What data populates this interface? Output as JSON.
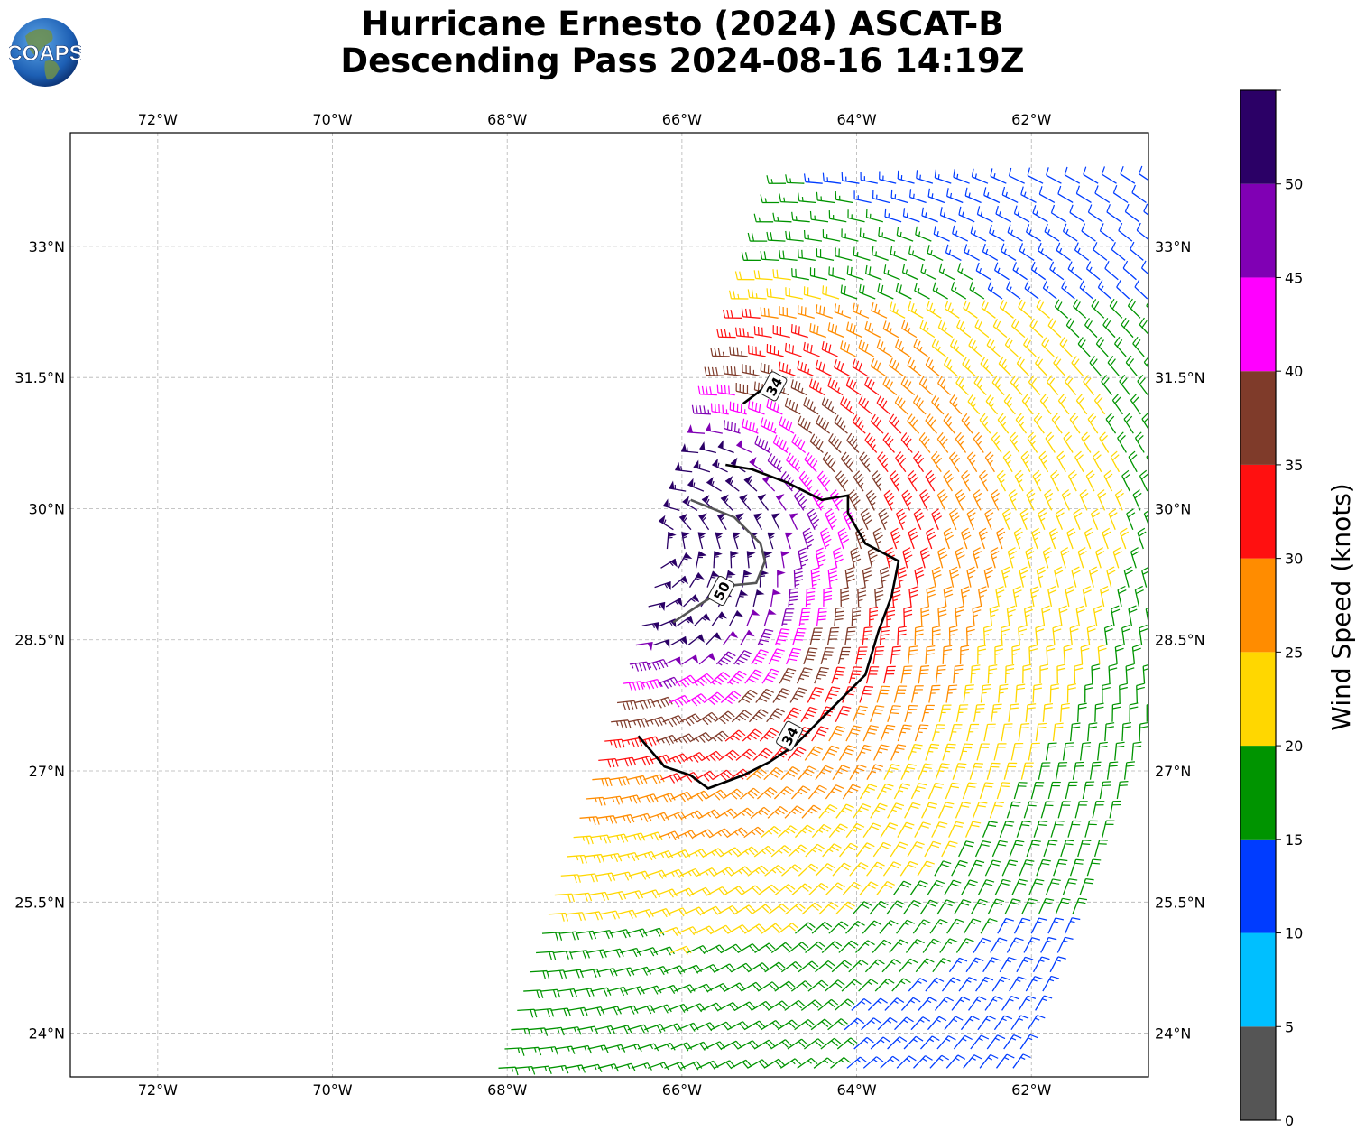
{
  "header": {
    "logo_text": "COAPS",
    "title_line1": "Hurricane Ernesto (2024) ASCAT-B",
    "title_line2": "Descending Pass 2024-08-16 14:19Z"
  },
  "chart_data": {
    "type": "wind-barb map",
    "title": "Hurricane Ernesto (2024) ASCAT-B Descending Pass 2024-08-16 14:19Z",
    "lon_range": [
      -73.0,
      -60.66
    ],
    "lat_range": [
      23.5,
      34.3
    ],
    "lon_ticks": [
      "72°W",
      "70°W",
      "68°W",
      "66°W",
      "64°W",
      "62°W"
    ],
    "lon_tick_values": [
      -72,
      -70,
      -68,
      -66,
      -64,
      -62
    ],
    "lat_ticks": [
      "33°N",
      "31.5°N",
      "30°N",
      "28.5°N",
      "27°N",
      "25.5°N",
      "24°N"
    ],
    "lat_tick_values": [
      33,
      31.5,
      30,
      28.5,
      27,
      25.5,
      24
    ],
    "grid": true,
    "storm_center": [
      -66.3,
      29.6
    ],
    "contours": [
      {
        "label": "34",
        "color": "#000000",
        "points": [
          [
            -66.5,
            27.4
          ],
          [
            -66.2,
            27.05
          ],
          [
            -65.9,
            26.95
          ],
          [
            -65.7,
            26.8
          ],
          [
            -65.3,
            26.95
          ],
          [
            -65.0,
            27.1
          ],
          [
            -64.7,
            27.3
          ],
          [
            -64.3,
            27.7
          ],
          [
            -63.9,
            28.1
          ],
          [
            -63.75,
            28.6
          ],
          [
            -63.6,
            29.0
          ],
          [
            -63.52,
            29.4
          ],
          [
            -63.9,
            29.6
          ],
          [
            -64.1,
            29.95
          ],
          [
            -64.1,
            30.15
          ],
          [
            -64.4,
            30.1
          ],
          [
            -64.8,
            30.3
          ],
          [
            -65.2,
            30.45
          ],
          [
            -65.5,
            30.5
          ]
        ],
        "label_at": [
          -64.77,
          27.4
        ]
      },
      {
        "label": "34",
        "color": "#000000",
        "points": [
          [
            -65.3,
            31.2
          ],
          [
            -65.1,
            31.35
          ],
          [
            -64.95,
            31.5
          ]
        ],
        "label_at": [
          -64.95,
          31.4
        ]
      },
      {
        "label": "50",
        "color": "#555555",
        "points": [
          [
            -66.1,
            28.7
          ],
          [
            -65.8,
            28.9
          ],
          [
            -65.45,
            29.12
          ],
          [
            -65.15,
            29.15
          ],
          [
            -65.05,
            29.4
          ],
          [
            -65.1,
            29.6
          ],
          [
            -65.4,
            29.9
          ],
          [
            -65.9,
            30.1
          ]
        ],
        "label_at": [
          -65.55,
          29.06
        ]
      }
    ],
    "colorbar": {
      "label": "Wind Speed (knots)",
      "ticks": [
        "0",
        "5",
        "10",
        "15",
        "20",
        "25",
        "30",
        "35",
        "40",
        "45",
        "50"
      ],
      "tick_values": [
        0,
        5,
        10,
        15,
        20,
        25,
        30,
        35,
        40,
        45,
        50
      ],
      "range": [
        0,
        55
      ],
      "bins": [
        {
          "min": 0,
          "max": 5,
          "color": "#555555"
        },
        {
          "min": 5,
          "max": 10,
          "color": "#00bfff"
        },
        {
          "min": 10,
          "max": 15,
          "color": "#003cff"
        },
        {
          "min": 15,
          "max": 20,
          "color": "#009400"
        },
        {
          "min": 20,
          "max": 25,
          "color": "#ffd700"
        },
        {
          "min": 25,
          "max": 30,
          "color": "#ff8c00"
        },
        {
          "min": 30,
          "max": 35,
          "color": "#ff1010"
        },
        {
          "min": 35,
          "max": 40,
          "color": "#7f3b2a"
        },
        {
          "min": 40,
          "max": 45,
          "color": "#ff00ff"
        },
        {
          "min": 45,
          "max": 50,
          "color": "#8000b4"
        },
        {
          "min": 50,
          "max": 55,
          "color": "#2b0066"
        }
      ]
    },
    "swath": {
      "rows": 47,
      "cols": 32,
      "lat_start": 23.6,
      "lat_step": 0.22,
      "cols_step_lon": 0.19
    }
  }
}
